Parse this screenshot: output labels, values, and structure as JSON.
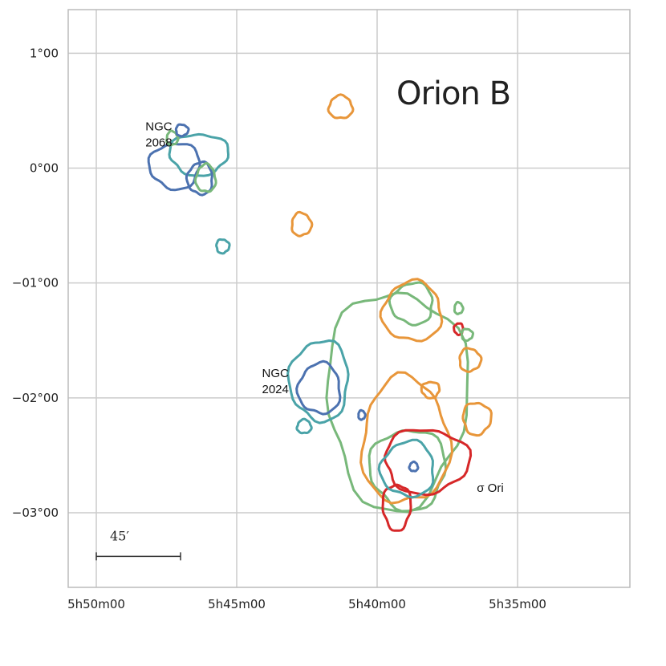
{
  "chart_data": {
    "type": "map",
    "title": "Orion B",
    "xlabel": "",
    "ylabel": "",
    "grid": true,
    "x_axis": {
      "unit": "minutes of RA (5h + m)",
      "lim": [
        51.0,
        31.0
      ],
      "ticks": [
        {
          "value": 50,
          "label": "5h50m00"
        },
        {
          "value": 45,
          "label": "5h45m00"
        },
        {
          "value": 40,
          "label": "5h40m00"
        },
        {
          "value": 35,
          "label": "5h35m00"
        }
      ]
    },
    "y_axis": {
      "unit": "degrees Dec",
      "lim": [
        -3.65,
        1.38
      ],
      "ticks": [
        {
          "value": 1,
          "label": "1°00"
        },
        {
          "value": 0,
          "label": "0°00"
        },
        {
          "value": -1,
          "label": "−01°00"
        },
        {
          "value": -2,
          "label": "−02°00"
        },
        {
          "value": -3,
          "label": "−03°00"
        }
      ]
    },
    "annotations": [
      {
        "lines": [
          "NGC",
          "2068"
        ],
        "x": 48.25,
        "y": 0.33
      },
      {
        "lines": [
          "NGC",
          "2024"
        ],
        "x": 44.1,
        "y": -1.82
      },
      {
        "lines": [
          "σ Ori"
        ],
        "x": 36.45,
        "y": -2.82
      }
    ],
    "scale_bar": {
      "label": "45′",
      "x_start": 50.0,
      "x_end": 47.0,
      "y": -3.38
    },
    "colors": {
      "red": "#d62728",
      "orange": "#e8963a",
      "green": "#78b87a",
      "teal": "#4aa3a8",
      "blue": "#4c72b0",
      "grid": "#cccccc",
      "frame": "#bbbbbb"
    },
    "contours": [
      {
        "color": "orange",
        "cx": 41.3,
        "cy": 0.53,
        "rx": 0.42,
        "ry": 0.1
      },
      {
        "color": "orange",
        "cx": 42.7,
        "cy": -0.49,
        "rx": 0.35,
        "ry": 0.1
      },
      {
        "color": "teal",
        "cx": 45.5,
        "cy": -0.68,
        "rx": 0.23,
        "ry": 0.06
      },
      {
        "color": "teal",
        "cx": 46.35,
        "cy": 0.12,
        "rx": 1.05,
        "ry": 0.18
      },
      {
        "color": "blue",
        "cx": 47.2,
        "cy": 0.02,
        "rx": 0.9,
        "ry": 0.2
      },
      {
        "color": "blue",
        "cx": 46.3,
        "cy": -0.09,
        "rx": 0.45,
        "ry": 0.14
      },
      {
        "color": "green",
        "cx": 46.1,
        "cy": -0.09,
        "rx": 0.35,
        "ry": 0.12
      },
      {
        "color": "green",
        "cx": 47.3,
        "cy": 0.26,
        "rx": 0.2,
        "ry": 0.06
      },
      {
        "color": "blue",
        "cx": 46.95,
        "cy": 0.33,
        "rx": 0.22,
        "ry": 0.05
      },
      {
        "color": "green",
        "cx": 39.3,
        "cy": -2.0,
        "rx": 2.5,
        "ry": 0.95
      },
      {
        "color": "green",
        "cx": 38.9,
        "cy": -2.62,
        "rx": 1.35,
        "ry": 0.35
      },
      {
        "color": "green",
        "cx": 38.75,
        "cy": -1.18,
        "rx": 0.75,
        "ry": 0.18
      },
      {
        "color": "orange",
        "cx": 38.75,
        "cy": -1.25,
        "rx": 1.05,
        "ry": 0.26
      },
      {
        "color": "orange",
        "cx": 39.0,
        "cy": -2.38,
        "rx": 1.55,
        "ry": 0.55
      },
      {
        "color": "orange",
        "cx": 36.7,
        "cy": -1.67,
        "rx": 0.38,
        "ry": 0.1
      },
      {
        "color": "orange",
        "cx": 36.45,
        "cy": -2.18,
        "rx": 0.5,
        "ry": 0.14
      },
      {
        "color": "orange",
        "cx": 38.1,
        "cy": -1.93,
        "rx": 0.32,
        "ry": 0.07
      },
      {
        "color": "teal",
        "cx": 42.05,
        "cy": -1.85,
        "rx": 1.05,
        "ry": 0.35
      },
      {
        "color": "blue",
        "cx": 42.05,
        "cy": -1.92,
        "rx": 0.75,
        "ry": 0.22
      },
      {
        "color": "teal",
        "cx": 42.6,
        "cy": -2.25,
        "rx": 0.25,
        "ry": 0.06
      },
      {
        "color": "blue",
        "cx": 40.55,
        "cy": -2.15,
        "rx": 0.12,
        "ry": 0.04
      },
      {
        "color": "red",
        "cx": 38.25,
        "cy": -2.55,
        "rx": 1.5,
        "ry": 0.28
      },
      {
        "color": "red",
        "cx": 39.3,
        "cy": -2.95,
        "rx": 0.5,
        "ry": 0.2
      },
      {
        "color": "red",
        "cx": 37.1,
        "cy": -1.4,
        "rx": 0.16,
        "ry": 0.05
      },
      {
        "color": "teal",
        "cx": 38.9,
        "cy": -2.62,
        "rx": 0.95,
        "ry": 0.24
      },
      {
        "color": "blue",
        "cx": 38.7,
        "cy": -2.6,
        "rx": 0.15,
        "ry": 0.04
      },
      {
        "color": "green",
        "cx": 37.1,
        "cy": -1.22,
        "rx": 0.15,
        "ry": 0.05
      },
      {
        "color": "green",
        "cx": 36.8,
        "cy": -1.45,
        "rx": 0.2,
        "ry": 0.05
      }
    ]
  }
}
